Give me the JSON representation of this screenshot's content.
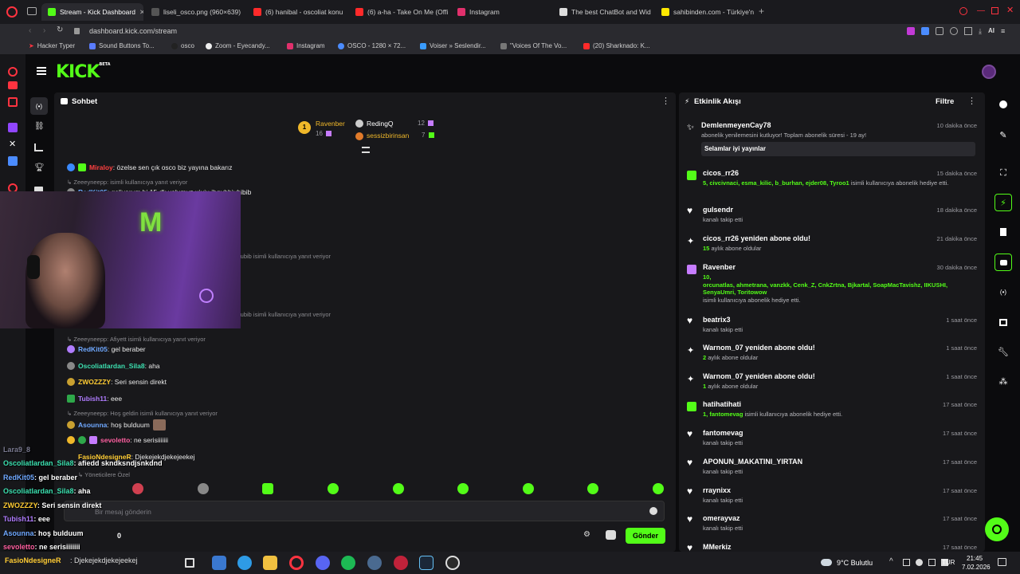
{
  "tabs": [
    {
      "label": "Stream - Kick Dashboard",
      "active": true,
      "color": "#53fc18"
    },
    {
      "label": "liseli_osco.png (960×639)",
      "color": "#cccccc"
    },
    {
      "label": "(6) hanibal - oscoliat konu",
      "color": "#ff2a2a"
    },
    {
      "label": "(6) a-ha - Take On Me (Offi",
      "color": "#ff2a2a"
    },
    {
      "label": "Instagram",
      "color": "#e1306c"
    },
    {
      "label": "The best ChatBot and Wid",
      "color": "#dddddd"
    },
    {
      "label": "sahibinden.com - Türkiye'n",
      "color": "#ffe800"
    }
  ],
  "address": {
    "url": "dashboard.kick.com/stream"
  },
  "bookmarks": [
    {
      "label": "Hacker Typer"
    },
    {
      "label": "Sound Buttons To..."
    },
    {
      "label": "osco"
    },
    {
      "label": "Zoom - Eyecandy..."
    },
    {
      "label": "Instagram"
    },
    {
      "label": "OSCO - 1280 × 72..."
    },
    {
      "label": "Voiser » Seslendir..."
    },
    {
      "label": "\"Voices Of The Vo..."
    },
    {
      "label": "(20) Sharknado: K..."
    }
  ],
  "kick": {
    "logo": "KICK",
    "beta": "BETA"
  },
  "chat": {
    "title": "Sohbet",
    "leaderboard": [
      {
        "rank": "1",
        "name": "Ravenber",
        "count": "16"
      },
      {
        "name": "RedingQ",
        "count": "12"
      },
      {
        "name": "sessizbirinsan",
        "count": "7"
      }
    ],
    "messages": [
      {
        "user": "Miraloy",
        "text": ": özelse sen çık osco biz yayına bakarız",
        "color": "#ff4040"
      },
      {
        "reply": "Zeeeyneepp: isimli kullanıcıya yanıt veriyor"
      },
      {
        "user": "RedKit05",
        "text": ": geliyorum bi 15 dk yolumuz uiuiu ihgubbiubibib",
        "color": "#6fa8ff"
      },
      {
        "reply": "iubib isimli kullanıcıya yanıt veriyor"
      },
      {
        "reply": "iubib isimli kullanıcıya yanıt veriyor"
      },
      {
        "reply": "Zeeeyneepp: Afiyett isimli kullanıcıya yanıt veriyor"
      },
      {
        "user": "RedKit05",
        "text": ": gel beraber",
        "color": "#6fa8ff"
      },
      {
        "user": "Oscoliatlardan_Sila8",
        "text": ": aha",
        "color": "#3ce0b0"
      },
      {
        "user": "ZWOZZZY",
        "text": ": Seri sensin direkt",
        "color": "#ffcc33"
      },
      {
        "user": "Tubish11",
        "text": ": eee",
        "color": "#b07cff"
      },
      {
        "reply": "Zeeeyneepp: Hoş geldin isimli kullanıcıya yanıt veriyor"
      },
      {
        "user": "Asounna",
        "text": ": hoş bulduum",
        "color": "#6fa8ff"
      },
      {
        "user": "sevoletto",
        "text": ": ne serisiiiiiii",
        "color": "#ff5fa0"
      },
      {
        "user": "FasioNdesigneR",
        "text": ": Djekejekdjekejeekej",
        "color": "#ffcc33"
      }
    ],
    "filter_label": "Yöneticilere Özel",
    "input_placeholder": "Bir mesaj gönderin",
    "viewers": "0",
    "send_label": "Gönder"
  },
  "activity": {
    "title": "Etkinlik Akışı",
    "filter_label": "Filtre",
    "items": [
      {
        "name": "DemlenmeyenCay78",
        "time": "10 dakika önce",
        "sub": "abonelik yenilemesini kutluyor! Toplam abonelik süresi - 19 ay!",
        "message": "Selamlar iyi yayınlar"
      },
      {
        "name": "cicos_rr26",
        "time": "15 dakika önce",
        "gift_count": "5",
        "gift_users": "civcivnaci, esma_kilic, b_burhan, ejder08, Tyroo1",
        "sub": "isimli kullanıcıya abonelik hediye etti."
      },
      {
        "name": "gulsendr",
        "time": "18 dakika önce",
        "sub": "kanalı takip etti"
      },
      {
        "name": "cicos_rr26 yeniden abone oldu!",
        "time": "21 dakika önce",
        "months": "15",
        "sub": "aylık abone oldular"
      },
      {
        "name": "Ravenber",
        "time": "30 dakika önce",
        "gift_count": "10",
        "gift_users": "orcunatlas, ahmetrana, vanzkk, Cenk_Z, CnkZrtna, Bjkartal, SoapMacTavishz, IIKUSHI, SenyaUmri, Toritowow",
        "sub": "isimli kullanıcıya abonelik hediye etti."
      },
      {
        "name": "beatrix3",
        "time": "1 saat önce",
        "sub": "kanalı takip etti"
      },
      {
        "name": "Warnom_07 yeniden abone oldu!",
        "time": "1 saat önce",
        "months": "2",
        "sub": "aylık abone oldular"
      },
      {
        "name": "Warnom_07 yeniden abone oldu!",
        "time": "1 saat önce",
        "months": "1",
        "sub": "aylık abone oldular"
      },
      {
        "name": "hatihatihati",
        "time": "17 saat önce",
        "gift_count": "1",
        "gift_users": "fantomevag",
        "sub": "isimli kullanıcıya abonelik hediye etti."
      },
      {
        "name": "fantomevag",
        "time": "17 saat önce",
        "sub": "kanalı takip etti"
      },
      {
        "name": "APONUN_MAKATINI_YIRTAN",
        "time": "17 saat önce",
        "sub": "kanalı takip etti"
      },
      {
        "name": "rraynixx",
        "time": "17 saat önce",
        "sub": "kanalı takip etti"
      },
      {
        "name": "omerayvaz",
        "time": "17 saat önce",
        "sub": "kanalı takip etti"
      },
      {
        "name": "MMerkiz",
        "time": "17 saat önce",
        "sub": ""
      }
    ]
  },
  "overlay_chat": [
    {
      "user": "Lara9_8",
      "text": ""
    },
    {
      "user": "Oscoliatlardan_Sila8",
      "text": ": afiedd skndksndjsnkdnd",
      "color": "#3ce0b0"
    },
    {
      "user": "RedKit05",
      "text": ": gel beraber",
      "color": "#6fa8ff"
    },
    {
      "user": "Oscoliatlardan_Sila8",
      "text": ": aha",
      "color": "#3ce0b0"
    },
    {
      "user": "ZWOZZZY",
      "text": ": Seri sensin direkt",
      "color": "#ffcc33"
    },
    {
      "user": "Tubish11",
      "text": ": eee",
      "color": "#b07cff"
    },
    {
      "user": "Asounna",
      "text": ": hoş bulduum",
      "color": "#6fa8ff"
    },
    {
      "user": "sevoletto",
      "text": ": ne serisiiiiiii",
      "color": "#ff5fa0"
    },
    {
      "user": "FasioNdesigneR",
      "text": ": Djekejekdjekejeekej",
      "color": "#ffcc33"
    }
  ],
  "taskbar": {
    "weather": "9°C Bulutlu",
    "lang": "TUR",
    "time": "21:45",
    "date": "7.02.2026"
  },
  "colors": {
    "accent": "#53fc18",
    "panel": "#18181b",
    "bg": "#0b0b0d"
  }
}
